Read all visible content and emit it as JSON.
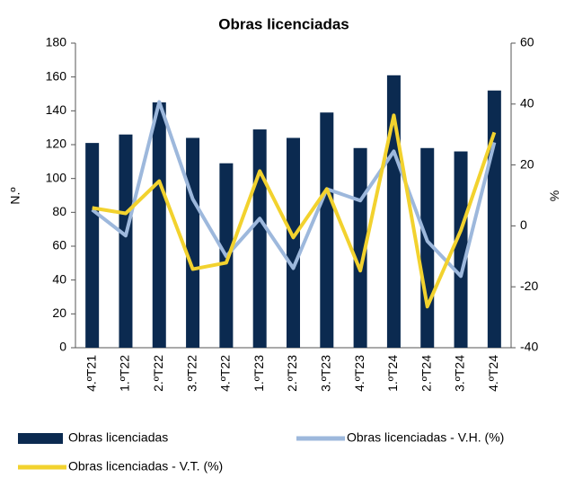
{
  "chart_data": {
    "type": "bar_line",
    "title": "Obras licenciadas",
    "y_label": "N.º",
    "y2_label": "%",
    "categories": [
      "4.ºT21",
      "1.ºT22",
      "2.ºT22",
      "3.ºT22",
      "4.ºT22",
      "1.ºT23",
      "2.ºT23",
      "3.ºT23",
      "4.ºT23",
      "1.ºT24",
      "2.ºT24",
      "3.ºT24",
      "4.ºT24"
    ],
    "series": [
      {
        "name": "Obras licenciadas",
        "type": "bar",
        "color": "#0b2a50",
        "axis": "y",
        "values": [
          121,
          126,
          145,
          124,
          109,
          129,
          124,
          139,
          118,
          161,
          118,
          116,
          152
        ]
      },
      {
        "name": "Obras licenciadas - V.H. (%)",
        "type": "line",
        "color": "#9db8dc",
        "axis": "y2",
        "values": [
          5.3,
          -3.2,
          40.7,
          8.8,
          -10.0,
          2.4,
          -13.9,
          12.1,
          8.3,
          24.5,
          -5.0,
          -16.5,
          27.4
        ]
      },
      {
        "name": "Obras licenciadas - V.T. (%)",
        "type": "line",
        "color": "#f2d22e",
        "axis": "y2",
        "values": [
          5.9,
          4.1,
          14.7,
          -14.2,
          -12.1,
          18.0,
          -3.8,
          12.1,
          -14.7,
          36.3,
          -26.5,
          -1.5,
          30.7
        ]
      }
    ],
    "ylim": [
      0,
      180
    ],
    "yticks": [
      0,
      20,
      40,
      60,
      80,
      100,
      120,
      140,
      160,
      180
    ],
    "y2lim": [
      -40,
      60
    ],
    "y2ticks": [
      -40,
      -20,
      0,
      20,
      40,
      60
    ],
    "grid": false
  }
}
